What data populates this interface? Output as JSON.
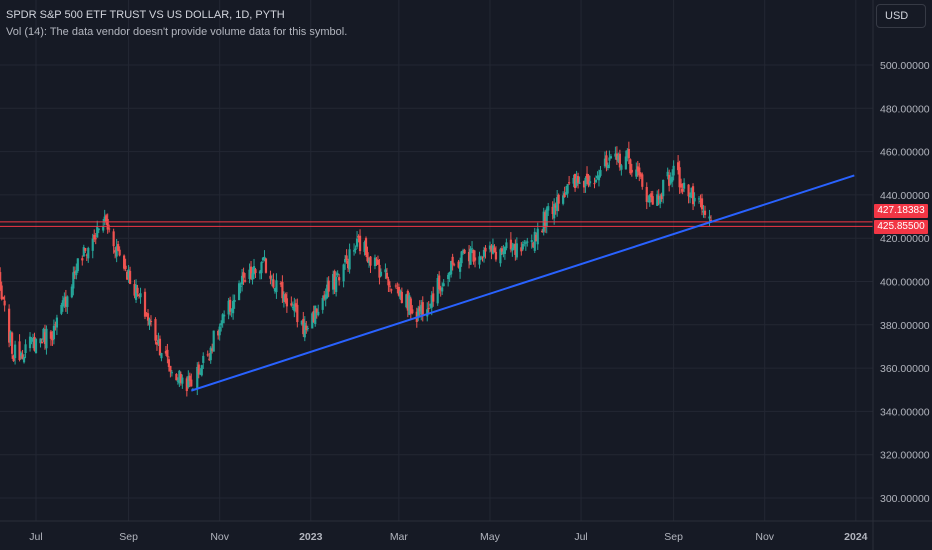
{
  "header": {
    "title": "SPDR S&P 500 ETF TRUST VS US DOLLAR, 1D, PYTH",
    "volume_note": "Vol (14): The data vendor doesn't provide volume data for this symbol."
  },
  "currency": "USD",
  "price_tags": {
    "upper": "427.18383",
    "lower": "425.85500"
  },
  "colors": {
    "background": "#161a25",
    "grid": "#232733",
    "up": "#26a69a",
    "down": "#ef5350",
    "trendline": "#2962ff",
    "horizontal_line": "#f23645"
  },
  "chart_data": {
    "type": "candlestick",
    "title": "SPDR S&P 500 ETF TRUST VS US DOLLAR, 1D, PYTH",
    "y_ticks": [
      "500.00000",
      "480.00000",
      "460.00000",
      "440.00000",
      "420.00000",
      "400.00000",
      "380.00000",
      "360.00000",
      "340.00000",
      "320.00000",
      "300.00000"
    ],
    "y_tick_values": [
      500,
      480,
      460,
      440,
      420,
      400,
      380,
      360,
      340,
      320,
      300
    ],
    "x_ticks": [
      "Jul",
      "Sep",
      "Nov",
      "2023",
      "Mar",
      "May",
      "Jul",
      "Sep",
      "Nov",
      "2024"
    ],
    "ylim": [
      289,
      519
    ],
    "grid": true,
    "close_path": [
      [
        "2022-06-01",
        414
      ],
      [
        "2022-06-16",
        366
      ],
      [
        "2022-07-14",
        378
      ],
      [
        "2022-07-28",
        407
      ],
      [
        "2022-08-16",
        428
      ],
      [
        "2022-09-30",
        358
      ],
      [
        "2022-10-13",
        352
      ],
      [
        "2022-11-15",
        398
      ],
      [
        "2022-12-01",
        408
      ],
      [
        "2022-12-28",
        378
      ],
      [
        "2023-02-02",
        418
      ],
      [
        "2023-03-13",
        385
      ],
      [
        "2023-04-14",
        413
      ],
      [
        "2023-05-25",
        414
      ],
      [
        "2023-06-16",
        440
      ],
      [
        "2023-07-31",
        458
      ],
      [
        "2023-08-18",
        436
      ],
      [
        "2023-09-01",
        451
      ],
      [
        "2023-09-26",
        426
      ]
    ],
    "horizontal_lines": [
      427.18383,
      425.855
    ],
    "trendline": {
      "start": [
        "2022-10-13",
        349.6
      ],
      "end": [
        "2023-12-31",
        449
      ]
    }
  }
}
